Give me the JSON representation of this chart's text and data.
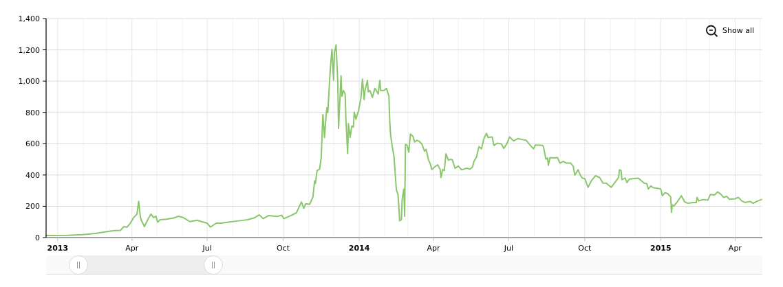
{
  "chart_data": {
    "type": "line",
    "color": "#8ac66b",
    "x": [
      "2012-12-18",
      "2013-01-14",
      "2013-01-31",
      "2013-02-16",
      "2013-03-02",
      "2013-03-11",
      "2013-03-18",
      "2013-03-22",
      "2013-03-26",
      "2013-03-30",
      "2013-04-03",
      "2013-04-07",
      "2013-04-09",
      "2013-04-11",
      "2013-04-12",
      "2013-04-16",
      "2013-04-20",
      "2013-04-24",
      "2013-04-27",
      "2013-04-30",
      "2013-05-02",
      "2013-05-05",
      "2013-05-13",
      "2013-05-22",
      "2013-05-27",
      "2013-06-02",
      "2013-06-10",
      "2013-06-19",
      "2013-06-24",
      "2013-07-01",
      "2013-07-05",
      "2013-07-12",
      "2013-07-18",
      "2013-07-27",
      "2013-08-08",
      "2013-08-19",
      "2013-08-27",
      "2013-09-02",
      "2013-09-07",
      "2013-09-13",
      "2013-09-24",
      "2013-09-29",
      "2013-10-02",
      "2013-10-10",
      "2013-10-17",
      "2013-10-23",
      "2013-10-26",
      "2013-10-28",
      "2013-11-02",
      "2013-11-06",
      "2013-11-08",
      "2013-11-09",
      "2013-11-11",
      "2013-11-14",
      "2013-11-16",
      "2013-11-18",
      "2013-11-20",
      "2013-11-22",
      "2013-11-23",
      "2013-11-24",
      "2013-11-27",
      "2013-11-29",
      "2013-12-01",
      "2013-12-02",
      "2013-12-04",
      "2013-12-06",
      "2013-12-07",
      "2013-12-10",
      "2013-12-11",
      "2013-12-13",
      "2013-12-15",
      "2013-12-16",
      "2013-12-18",
      "2013-12-19",
      "2013-12-21",
      "2013-12-23",
      "2013-12-25",
      "2013-12-26",
      "2013-12-28",
      "2013-12-31",
      "2014-01-03",
      "2014-01-05",
      "2014-01-07",
      "2014-01-08",
      "2014-01-11",
      "2014-01-12",
      "2014-01-14",
      "2014-01-17",
      "2014-01-20",
      "2014-01-24",
      "2014-01-26",
      "2014-01-27",
      "2014-01-31",
      "2014-02-03",
      "2014-02-06",
      "2014-02-07",
      "2014-02-08",
      "2014-02-10",
      "2014-02-12",
      "2014-02-15",
      "2014-02-17",
      "2014-02-19",
      "2014-02-21",
      "2014-02-22",
      "2014-02-24",
      "2014-02-25",
      "2014-02-26",
      "2014-02-28",
      "2014-03-02",
      "2014-03-04",
      "2014-03-07",
      "2014-03-09",
      "2014-03-12",
      "2014-03-15",
      "2014-03-18",
      "2014-03-21",
      "2014-03-23",
      "2014-03-26",
      "2014-03-28",
      "2014-03-30",
      "2014-04-02",
      "2014-04-06",
      "2014-04-09",
      "2014-04-10",
      "2014-04-12",
      "2014-04-14",
      "2014-04-16",
      "2014-04-19",
      "2014-04-22",
      "2014-04-24",
      "2014-04-27",
      "2014-05-01",
      "2014-05-05",
      "2014-05-11",
      "2014-05-15",
      "2014-05-18",
      "2014-05-20",
      "2014-05-23",
      "2014-05-26",
      "2014-05-29",
      "2014-06-01",
      "2014-06-04",
      "2014-06-06",
      "2014-06-11",
      "2014-06-13",
      "2014-06-17",
      "2014-06-22",
      "2014-06-25",
      "2014-06-29",
      "2014-07-02",
      "2014-07-07",
      "2014-07-12",
      "2014-07-18",
      "2014-07-22",
      "2014-07-26",
      "2014-07-31",
      "2014-08-02",
      "2014-08-11",
      "2014-08-12",
      "2014-08-15",
      "2014-08-17",
      "2014-08-18",
      "2014-08-20",
      "2014-08-25",
      "2014-08-29",
      "2014-09-01",
      "2014-09-05",
      "2014-09-09",
      "2014-09-14",
      "2014-09-17",
      "2014-09-19",
      "2014-09-23",
      "2014-09-25",
      "2014-09-28",
      "2014-10-01",
      "2014-10-05",
      "2014-10-09",
      "2014-10-14",
      "2014-10-19",
      "2014-10-23",
      "2014-10-27",
      "2014-11-02",
      "2014-11-06",
      "2014-11-09",
      "2014-11-11",
      "2014-11-12",
      "2014-11-14",
      "2014-11-15",
      "2014-11-19",
      "2014-11-21",
      "2014-11-24",
      "2014-11-30",
      "2014-12-05",
      "2014-12-08",
      "2014-12-12",
      "2014-12-15",
      "2014-12-17",
      "2014-12-20",
      "2014-12-23",
      "2014-12-29",
      "2015-01-01",
      "2015-01-03",
      "2015-01-06",
      "2015-01-09",
      "2015-01-12",
      "2015-01-13",
      "2015-01-14",
      "2015-01-15",
      "2015-01-17",
      "2015-01-21",
      "2015-01-26",
      "2015-01-30",
      "2015-02-03",
      "2015-02-09",
      "2015-02-13",
      "2015-02-14",
      "2015-02-16",
      "2015-02-21",
      "2015-02-27",
      "2015-03-02",
      "2015-03-07",
      "2015-03-11",
      "2015-03-15",
      "2015-03-18",
      "2015-03-22",
      "2015-03-25",
      "2015-04-01",
      "2015-04-05",
      "2015-04-09",
      "2015-04-13",
      "2015-04-19",
      "2015-04-23",
      "2015-04-27",
      "2015-05-03"
    ],
    "values": [
      13,
      14,
      19,
      26,
      38,
      45,
      46,
      70,
      66,
      92,
      128,
      150,
      231,
      136,
      114,
      70,
      114,
      150,
      128,
      136,
      99,
      114,
      117,
      126,
      136,
      128,
      102,
      111,
      102,
      92,
      67,
      92,
      92,
      99,
      107,
      114,
      126,
      145,
      121,
      140,
      135,
      143,
      121,
      140,
      158,
      228,
      187,
      216,
      213,
      260,
      362,
      345,
      428,
      436,
      509,
      786,
      640,
      786,
      830,
      800,
      1078,
      1203,
      1005,
      1181,
      1232,
      1005,
      698,
      1035,
      903,
      940,
      918,
      742,
      538,
      728,
      640,
      713,
      706,
      801,
      757,
      808,
      889,
      1013,
      881,
      940,
      1005,
      932,
      940,
      896,
      954,
      918,
      1005,
      940,
      940,
      954,
      903,
      742,
      655,
      582,
      523,
      304,
      275,
      107,
      114,
      245,
      311,
      136,
      596,
      589,
      545,
      662,
      647,
      611,
      622,
      614,
      596,
      552,
      564,
      494,
      472,
      435,
      450,
      465,
      435,
      384,
      435,
      428,
      535,
      494,
      501,
      494,
      443,
      457,
      433,
      443,
      438,
      450,
      487,
      516,
      582,
      567,
      633,
      666,
      640,
      643,
      589,
      603,
      599,
      570,
      603,
      643,
      618,
      633,
      626,
      622,
      596,
      567,
      591,
      589,
      582,
      501,
      509,
      462,
      511,
      509,
      511,
      476,
      487,
      476,
      476,
      457,
      399,
      433,
      406,
      380,
      377,
      321,
      363,
      395,
      384,
      348,
      348,
      321,
      348,
      370,
      384,
      433,
      428,
      370,
      380,
      351,
      374,
      377,
      380,
      365,
      348,
      345,
      311,
      330,
      319,
      314,
      311,
      267,
      286,
      282,
      267,
      260,
      161,
      209,
      202,
      228,
      267,
      228,
      219,
      224,
      224,
      257,
      234,
      243,
      239,
      275,
      272,
      292,
      276,
      257,
      263,
      245,
      248,
      257,
      234,
      224,
      231,
      219,
      231,
      243
    ],
    "xlim": [
      "2012-12-18",
      "2015-05-04"
    ],
    "ylim": [
      0,
      1400
    ],
    "xticks": [
      {
        "value": "2013-01-01",
        "label": "2013"
      },
      {
        "value": "2013-02-01",
        "label": null
      },
      {
        "value": "2013-03-01",
        "label": null
      },
      {
        "value": "2013-04-01",
        "label": "Apr"
      },
      {
        "value": "2013-05-01",
        "label": null
      },
      {
        "value": "2013-06-01",
        "label": null
      },
      {
        "value": "2013-07-01",
        "label": "Jul"
      },
      {
        "value": "2013-08-01",
        "label": null
      },
      {
        "value": "2013-09-01",
        "label": null
      },
      {
        "value": "2013-10-01",
        "label": "Oct"
      },
      {
        "value": "2013-11-01",
        "label": null
      },
      {
        "value": "2013-12-01",
        "label": null
      },
      {
        "value": "2014-01-01",
        "label": "2014"
      },
      {
        "value": "2014-02-01",
        "label": null
      },
      {
        "value": "2014-03-01",
        "label": null
      },
      {
        "value": "2014-04-01",
        "label": "Apr"
      },
      {
        "value": "2014-05-01",
        "label": null
      },
      {
        "value": "2014-06-01",
        "label": null
      },
      {
        "value": "2014-07-01",
        "label": "Jul"
      },
      {
        "value": "2014-08-01",
        "label": null
      },
      {
        "value": "2014-09-01",
        "label": null
      },
      {
        "value": "2014-10-01",
        "label": "Oct"
      },
      {
        "value": "2014-11-01",
        "label": null
      },
      {
        "value": "2014-12-01",
        "label": null
      },
      {
        "value": "2015-01-01",
        "label": "2015"
      },
      {
        "value": "2015-02-01",
        "label": null
      },
      {
        "value": "2015-03-01",
        "label": null
      },
      {
        "value": "2015-04-01",
        "label": "Apr"
      },
      {
        "value": "2015-05-01",
        "label": null
      }
    ],
    "yticks": [
      0,
      200,
      400,
      600,
      800,
      {
        "value": 1000,
        "label": "1,000"
      },
      {
        "value": 1200,
        "label": "1,200"
      },
      {
        "value": 1400,
        "label": "1,400"
      }
    ],
    "grid": true,
    "annotations": [
      "Show all"
    ]
  }
}
